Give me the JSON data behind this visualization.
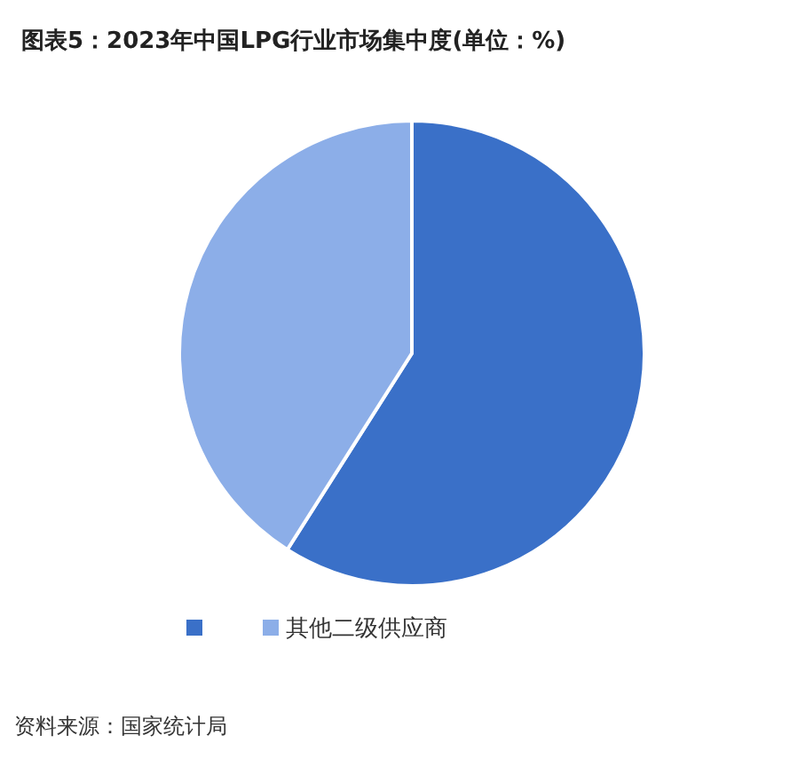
{
  "chart_data": {
    "type": "pie",
    "title": "图表5：2023年中国LPG行业市场集中度(单位：%)",
    "categories": [
      null,
      "其他二级供应商"
    ],
    "values": [
      59,
      41
    ],
    "colors": [
      "#3a70c8",
      "#8caee8"
    ],
    "legend": "bottom",
    "annotations": [
      "资料来源：国家统计局"
    ]
  }
}
